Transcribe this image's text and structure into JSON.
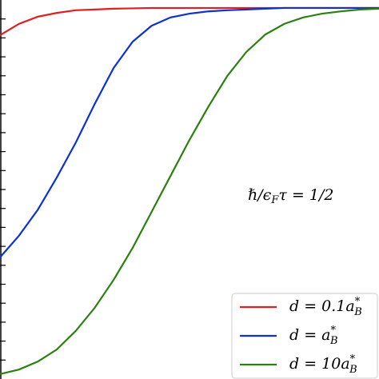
{
  "chart_data": {
    "type": "line",
    "annotation": "ℏ/ϵFτ = 1/2",
    "x": [
      0,
      0.05,
      0.1,
      0.15,
      0.2,
      0.25,
      0.3,
      0.35,
      0.4,
      0.45,
      0.5,
      0.55,
      0.6,
      0.65,
      0.7,
      0.75,
      0.8,
      0.85,
      0.9,
      0.95,
      1
    ],
    "xlim": [
      0,
      1
    ],
    "ylim": [
      0,
      1
    ],
    "yticks": [
      0.05,
      0.1,
      0.15,
      0.2,
      0.25,
      0.3,
      0.35,
      0.4,
      0.45,
      0.5,
      0.55,
      0.6,
      0.65,
      0.7,
      0.75,
      0.8,
      0.85,
      0.9,
      0.95
    ],
    "legend": "lower right",
    "series": [
      {
        "name": "d = 0.1a*B",
        "color": "#e02020",
        "values": [
          0.907,
          0.937,
          0.956,
          0.966,
          0.973,
          0.975,
          0.977,
          0.978,
          0.979,
          0.979,
          0.979,
          0.979,
          0.979,
          0.979,
          0.979,
          0.979,
          0.979,
          0.979,
          0.979,
          0.979,
          0.979
        ]
      },
      {
        "name": "d = a*B",
        "color": "#1030d0",
        "values": [
          0.321,
          0.378,
          0.447,
          0.532,
          0.624,
          0.726,
          0.821,
          0.89,
          0.932,
          0.954,
          0.964,
          0.97,
          0.973,
          0.975,
          0.977,
          0.979,
          0.979,
          0.979,
          0.979,
          0.979,
          0.979
        ]
      },
      {
        "name": "d = 10a*B",
        "color": "#2a8010",
        "values": [
          0.013,
          0.025,
          0.046,
          0.078,
          0.127,
          0.188,
          0.262,
          0.346,
          0.441,
          0.536,
          0.631,
          0.719,
          0.8,
          0.863,
          0.909,
          0.937,
          0.954,
          0.964,
          0.97,
          0.975,
          0.977
        ]
      }
    ]
  }
}
